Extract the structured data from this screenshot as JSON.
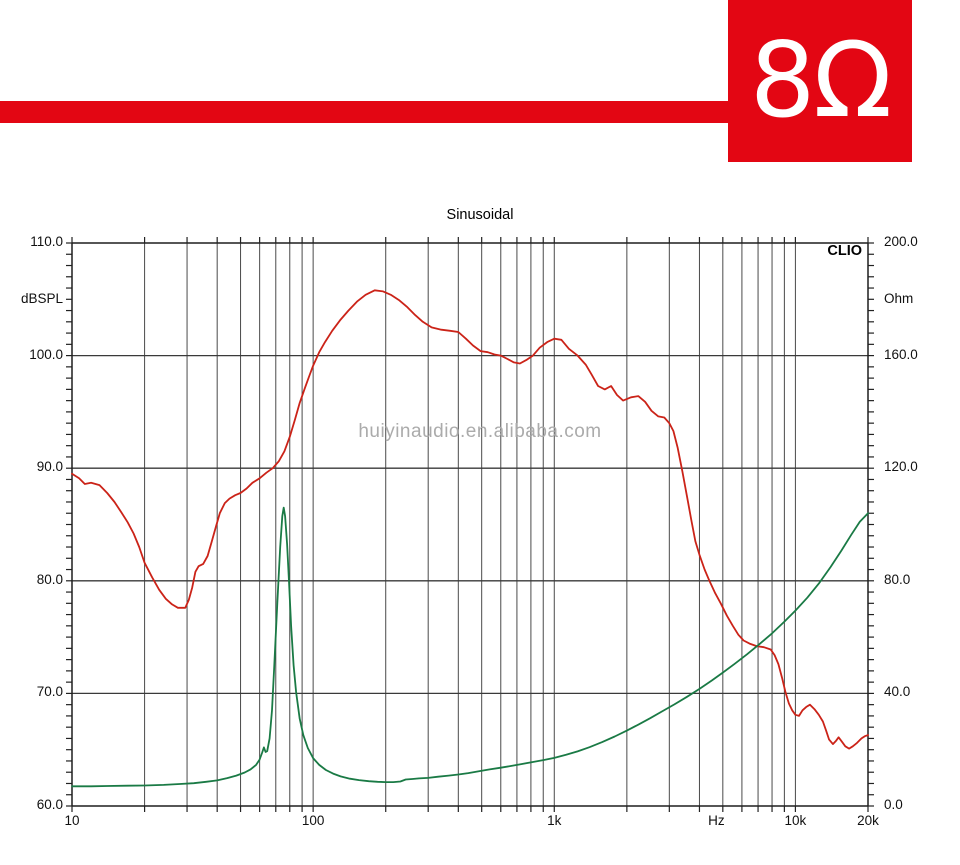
{
  "banner": {
    "logo_text": "8Ω",
    "color": "#e30613"
  },
  "chart_data": {
    "type": "line",
    "title": "Sinusoidal",
    "annotation_top_right": "CLIO",
    "watermark": "huiyinaudio.en.alibaba.com",
    "watermark_color": "#ababab",
    "grid_color": "#4a4a4a",
    "border_color": "#1f1f1f",
    "x_axis": {
      "scale": "log",
      "min": 10,
      "max": 20000,
      "unit": "Hz",
      "grid_freqs": [
        20,
        30,
        40,
        50,
        60,
        70,
        80,
        90,
        100,
        200,
        300,
        400,
        500,
        600,
        700,
        800,
        900,
        1000,
        2000,
        3000,
        4000,
        5000,
        6000,
        7000,
        8000,
        9000,
        10000
      ],
      "labels": [
        [
          "10",
          10
        ],
        [
          "100",
          100
        ],
        [
          "1k",
          1000
        ],
        [
          "Hz",
          4700
        ],
        [
          "10k",
          10000
        ],
        [
          "20k",
          20000
        ]
      ]
    },
    "left_axis": {
      "label": "dBSPL",
      "min": 60,
      "max": 110,
      "minor_step": 1,
      "grid_values": [
        70,
        80,
        90,
        100
      ],
      "major_ticks": [
        [
          "110.0",
          110
        ],
        [
          "100.0",
          100
        ],
        [
          "90.0",
          90
        ],
        [
          "80.0",
          80
        ],
        [
          "70.0",
          70
        ],
        [
          "60.0",
          60
        ]
      ]
    },
    "right_axis": {
      "label": "Ohm",
      "min": 0,
      "max": 200,
      "minor_step": 4,
      "major_ticks": [
        [
          "200.0",
          200
        ],
        [
          "160.0",
          160
        ],
        [
          "120.0",
          120
        ],
        [
          "80.0",
          80
        ],
        [
          "40.0",
          40
        ],
        [
          "0.0",
          0
        ]
      ]
    },
    "series": [
      {
        "name": "SPL",
        "axis": "left",
        "color": "#cb2318",
        "points": [
          [
            10,
            89.5
          ],
          [
            10.7,
            89.1
          ],
          [
            11.3,
            88.6
          ],
          [
            12,
            88.7
          ],
          [
            13,
            88.5
          ],
          [
            14,
            87.8
          ],
          [
            15,
            87.0
          ],
          [
            16,
            86.1
          ],
          [
            17,
            85.2
          ],
          [
            18,
            84.2
          ],
          [
            19,
            83.0
          ],
          [
            20,
            81.6
          ],
          [
            21.5,
            80.3
          ],
          [
            23,
            79.2
          ],
          [
            24.5,
            78.4
          ],
          [
            26,
            77.9
          ],
          [
            27.5,
            77.6
          ],
          [
            29.5,
            77.6
          ],
          [
            30.5,
            78.3
          ],
          [
            31.5,
            79.4
          ],
          [
            32.5,
            80.8
          ],
          [
            33.5,
            81.3
          ],
          [
            35,
            81.5
          ],
          [
            36.5,
            82.2
          ],
          [
            38,
            83.5
          ],
          [
            39.5,
            84.8
          ],
          [
            41,
            86.0
          ],
          [
            43,
            86.9
          ],
          [
            45,
            87.3
          ],
          [
            47.5,
            87.6
          ],
          [
            50,
            87.8
          ],
          [
            53,
            88.2
          ],
          [
            56,
            88.7
          ],
          [
            60,
            89.1
          ],
          [
            64,
            89.6
          ],
          [
            68,
            90.0
          ],
          [
            72,
            90.6
          ],
          [
            76,
            91.5
          ],
          [
            80,
            92.8
          ],
          [
            84,
            94.3
          ],
          [
            88,
            95.8
          ],
          [
            92,
            97.0
          ],
          [
            96,
            98.1
          ],
          [
            100,
            99.1
          ],
          [
            106,
            100.3
          ],
          [
            112,
            101.2
          ],
          [
            120,
            102.2
          ],
          [
            130,
            103.2
          ],
          [
            140,
            104.0
          ],
          [
            152,
            104.8
          ],
          [
            165,
            105.4
          ],
          [
            180,
            105.8
          ],
          [
            195,
            105.7
          ],
          [
            210,
            105.4
          ],
          [
            228,
            104.9
          ],
          [
            246,
            104.3
          ],
          [
            265,
            103.6
          ],
          [
            285,
            103.0
          ],
          [
            310,
            102.5
          ],
          [
            340,
            102.3
          ],
          [
            370,
            102.2
          ],
          [
            400,
            102.1
          ],
          [
            430,
            101.5
          ],
          [
            460,
            100.9
          ],
          [
            495,
            100.4
          ],
          [
            530,
            100.3
          ],
          [
            565,
            100.1
          ],
          [
            600,
            100.0
          ],
          [
            640,
            99.7
          ],
          [
            680,
            99.4
          ],
          [
            720,
            99.3
          ],
          [
            765,
            99.6
          ],
          [
            815,
            100.0
          ],
          [
            870,
            100.7
          ],
          [
            935,
            101.2
          ],
          [
            1000,
            101.5
          ],
          [
            1070,
            101.4
          ],
          [
            1150,
            100.6
          ],
          [
            1250,
            100.0
          ],
          [
            1350,
            99.2
          ],
          [
            1430,
            98.3
          ],
          [
            1520,
            97.3
          ],
          [
            1620,
            97.0
          ],
          [
            1720,
            97.3
          ],
          [
            1820,
            96.5
          ],
          [
            1930,
            96.0
          ],
          [
            2080,
            96.3
          ],
          [
            2230,
            96.4
          ],
          [
            2380,
            95.9
          ],
          [
            2530,
            95.1
          ],
          [
            2700,
            94.6
          ],
          [
            2860,
            94.5
          ],
          [
            3000,
            94.0
          ],
          [
            3120,
            93.3
          ],
          [
            3250,
            91.8
          ],
          [
            3400,
            89.7
          ],
          [
            3550,
            87.5
          ],
          [
            3700,
            85.4
          ],
          [
            3850,
            83.5
          ],
          [
            4000,
            82.3
          ],
          [
            4200,
            81.0
          ],
          [
            4400,
            80.0
          ],
          [
            4650,
            78.9
          ],
          [
            4900,
            78.0
          ],
          [
            5200,
            76.9
          ],
          [
            5500,
            76.0
          ],
          [
            5800,
            75.2
          ],
          [
            6100,
            74.7
          ],
          [
            6500,
            74.4
          ],
          [
            6900,
            74.2
          ],
          [
            7400,
            74.1
          ],
          [
            7900,
            73.9
          ],
          [
            8200,
            73.4
          ],
          [
            8500,
            72.6
          ],
          [
            8800,
            71.4
          ],
          [
            9100,
            70.1
          ],
          [
            9400,
            69.1
          ],
          [
            9700,
            68.5
          ],
          [
            10000,
            68.1
          ],
          [
            10350,
            68.0
          ],
          [
            10700,
            68.5
          ],
          [
            11100,
            68.8
          ],
          [
            11500,
            69.0
          ],
          [
            12000,
            68.6
          ],
          [
            12500,
            68.1
          ],
          [
            13000,
            67.5
          ],
          [
            13400,
            66.7
          ],
          [
            13800,
            65.9
          ],
          [
            14300,
            65.5
          ],
          [
            14750,
            65.8
          ],
          [
            15100,
            66.1
          ],
          [
            15600,
            65.7
          ],
          [
            16100,
            65.3
          ],
          [
            16700,
            65.1
          ],
          [
            17300,
            65.3
          ],
          [
            18000,
            65.6
          ],
          [
            18800,
            66.0
          ],
          [
            19400,
            66.2
          ],
          [
            20000,
            66.3
          ]
        ]
      },
      {
        "name": "Impedance",
        "axis": "right",
        "color": "#1a7a45",
        "points": [
          [
            10,
            7.0
          ],
          [
            12,
            7.0
          ],
          [
            14,
            7.1
          ],
          [
            17,
            7.2
          ],
          [
            20,
            7.3
          ],
          [
            24,
            7.5
          ],
          [
            28,
            7.8
          ],
          [
            32,
            8.1
          ],
          [
            36,
            8.6
          ],
          [
            40,
            9.1
          ],
          [
            44,
            9.9
          ],
          [
            48,
            10.8
          ],
          [
            52,
            11.9
          ],
          [
            55,
            13.0
          ],
          [
            58,
            14.6
          ],
          [
            60,
            16.5
          ],
          [
            61.5,
            19.0
          ],
          [
            62.5,
            20.8
          ],
          [
            63.5,
            19.2
          ],
          [
            64.5,
            19.5
          ],
          [
            66,
            24.0
          ],
          [
            67.5,
            34.0
          ],
          [
            69,
            50.0
          ],
          [
            71,
            72.0
          ],
          [
            73,
            92.0
          ],
          [
            74.5,
            103.0
          ],
          [
            75.5,
            106.0
          ],
          [
            76.5,
            103.0
          ],
          [
            78,
            93.0
          ],
          [
            79.5,
            79.0
          ],
          [
            81,
            64.0
          ],
          [
            83,
            50.0
          ],
          [
            85,
            40.5
          ],
          [
            88,
            31.0
          ],
          [
            91,
            25.2
          ],
          [
            95,
            20.6
          ],
          [
            100,
            17.0
          ],
          [
            106,
            14.6
          ],
          [
            113,
            12.8
          ],
          [
            121,
            11.5
          ],
          [
            130,
            10.5
          ],
          [
            142,
            9.7
          ],
          [
            155,
            9.2
          ],
          [
            170,
            8.8
          ],
          [
            185,
            8.6
          ],
          [
            200,
            8.5
          ],
          [
            215,
            8.5
          ],
          [
            230,
            8.7
          ],
          [
            242,
            9.4
          ],
          [
            258,
            9.6
          ],
          [
            275,
            9.8
          ],
          [
            300,
            10.0
          ],
          [
            330,
            10.4
          ],
          [
            365,
            10.8
          ],
          [
            400,
            11.2
          ],
          [
            440,
            11.7
          ],
          [
            490,
            12.4
          ],
          [
            540,
            13.0
          ],
          [
            600,
            13.6
          ],
          [
            660,
            14.2
          ],
          [
            730,
            14.9
          ],
          [
            810,
            15.6
          ],
          [
            900,
            16.3
          ],
          [
            1000,
            17.1
          ],
          [
            1120,
            18.2
          ],
          [
            1250,
            19.4
          ],
          [
            1400,
            20.9
          ],
          [
            1580,
            22.7
          ],
          [
            1780,
            24.7
          ],
          [
            2000,
            26.8
          ],
          [
            2240,
            29.0
          ],
          [
            2500,
            31.2
          ],
          [
            2800,
            33.6
          ],
          [
            3150,
            36.1
          ],
          [
            3550,
            38.8
          ],
          [
            4000,
            41.6
          ],
          [
            4500,
            44.6
          ],
          [
            5000,
            47.4
          ],
          [
            5600,
            50.5
          ],
          [
            6300,
            53.9
          ],
          [
            7100,
            57.5
          ],
          [
            8000,
            61.3
          ],
          [
            9000,
            65.5
          ],
          [
            10000,
            69.4
          ],
          [
            11200,
            74.0
          ],
          [
            12500,
            79.0
          ],
          [
            14000,
            84.9
          ],
          [
            15500,
            90.7
          ],
          [
            17000,
            96.2
          ],
          [
            18500,
            101.0
          ],
          [
            20000,
            104.0
          ]
        ]
      }
    ]
  }
}
